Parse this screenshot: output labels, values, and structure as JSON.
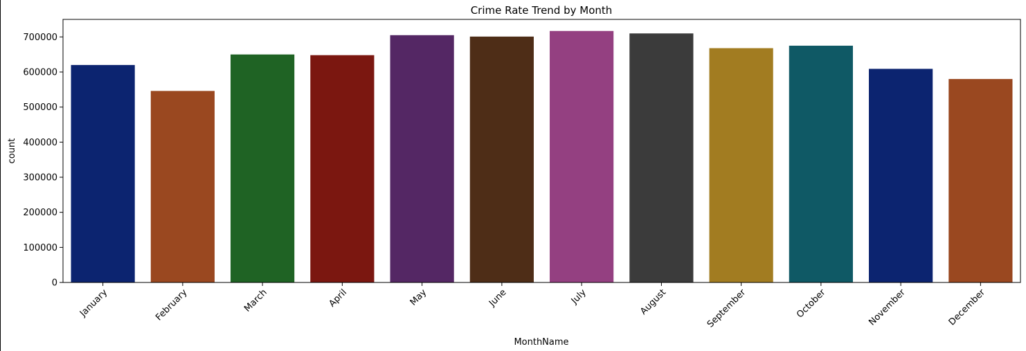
{
  "chart_data": {
    "type": "bar",
    "title": "Crime Rate Trend by Month",
    "xlabel": "MonthName",
    "ylabel": "count",
    "categories": [
      "January",
      "February",
      "March",
      "April",
      "May",
      "June",
      "July",
      "August",
      "September",
      "October",
      "November",
      "December"
    ],
    "values": [
      620000,
      546000,
      650000,
      648000,
      705000,
      701000,
      717000,
      710000,
      668000,
      675000,
      609000,
      580000
    ],
    "colors": [
      "#0c2470",
      "#9a4820",
      "#1f6324",
      "#7b1710",
      "#542764",
      "#4e2d17",
      "#944081",
      "#3b3b3b",
      "#a27c21",
      "#0f5965",
      "#0c2470",
      "#9a4820"
    ],
    "ylim": [
      0,
      750000
    ],
    "yticks": [
      0,
      100000,
      200000,
      300000,
      400000,
      500000,
      600000,
      700000
    ],
    "grid": false,
    "legend": "none"
  }
}
